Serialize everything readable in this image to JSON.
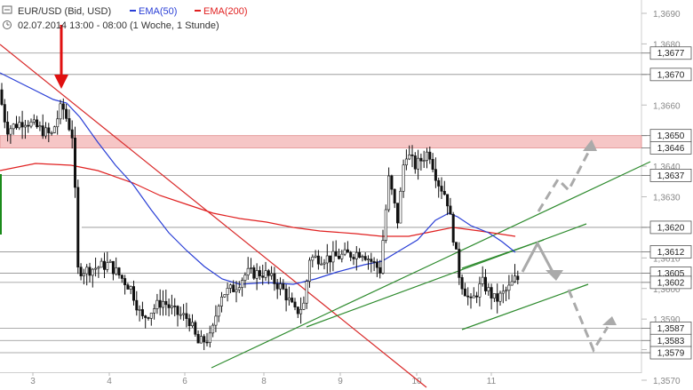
{
  "header": {
    "symbol": "EUR/USD (Bid, USD)",
    "ema50_label": "EMA(50)",
    "ema200_label": "EMA(200)",
    "subtitle": "02.07.2014 13:00 - 08:00 (1 Woche, 1 Stunde)",
    "ema50_color": "#2a3fd6",
    "ema200_color": "#e02020"
  },
  "chart_data": {
    "type": "candlestick",
    "title": "EUR/USD (Bid, USD)",
    "subtitle": "02.07.2014 13:00 - 08:00 (1 Woche, 1 Stunde)",
    "ylim": [
      1.3568,
      1.3695
    ],
    "y_ticks": [
      "1,3690",
      "1,3680",
      "1,3670",
      "1,3660",
      "1,3650",
      "1,3640",
      "1,3630",
      "1,3620",
      "1,3610",
      "1,3600",
      "1,3590",
      "1,3580",
      "1,3570"
    ],
    "x_ticks": [
      "3",
      "4",
      "6",
      "8",
      "9",
      "10",
      "11"
    ],
    "levels": [
      {
        "label": "1,3677",
        "value": 1.3677
      },
      {
        "label": "1,3670",
        "value": 1.367
      },
      {
        "label": "1,3650",
        "value": 1.365
      },
      {
        "label": "1,3646",
        "value": 1.3646
      },
      {
        "label": "1,3637",
        "value": 1.3637
      },
      {
        "label": "1,3620",
        "value": 1.362
      },
      {
        "label": "1,3612",
        "value": 1.3612
      },
      {
        "label": "1,3605",
        "value": 1.3605
      },
      {
        "label": "1,3602",
        "value": 1.3602
      },
      {
        "label": "1,3587",
        "value": 1.3587
      },
      {
        "label": "1,3583",
        "value": 1.3583
      },
      {
        "label": "1,3579",
        "value": 1.3579
      }
    ],
    "resistance_zone": [
      1.3646,
      1.365
    ],
    "series": [
      {
        "name": "EMA(50)",
        "color": "#2a3fd6"
      },
      {
        "name": "EMA(200)",
        "color": "#e02020"
      }
    ],
    "legend_position": "top-left",
    "grid": false
  }
}
